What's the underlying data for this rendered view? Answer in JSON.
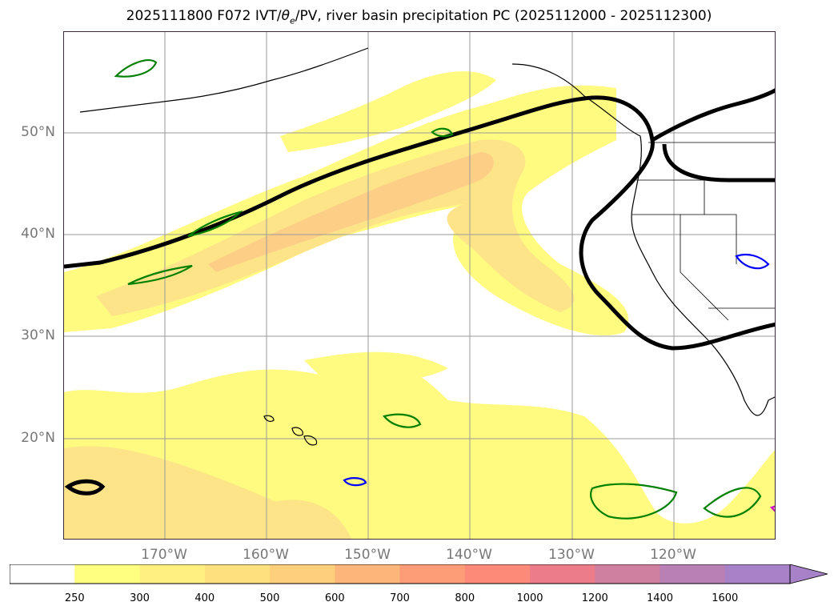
{
  "title": {
    "main": "2025111800 F072 IVT/",
    "theta": "θ",
    "theta_sub": "e",
    "rest": "/PV, river basin precipitation PC (2025112000 - 2025112300)"
  },
  "map": {
    "projection": "PlateCarree",
    "lat_labels": [
      "50°N",
      "40°N",
      "30°N",
      "20°N"
    ],
    "lon_labels": [
      "170°W",
      "160°W",
      "150°W",
      "140°W",
      "130°W",
      "120°W"
    ],
    "fill_colors": [
      "#ffffff",
      "#fffb80",
      "#fef389",
      "#fde489",
      "#fdcf86",
      "#fbb380",
      "#fa9a7f",
      "#f78a80",
      "#e07f90",
      "#c47fa8",
      "#b282c0",
      "#a882cc"
    ],
    "contour_colors": {
      "pv": "#000000",
      "precip_high": "#008000",
      "precip_low": "#0000ff",
      "precip_extreme": "#cc00cc"
    }
  },
  "colorbar": {
    "ticks": [
      "250",
      "300",
      "400",
      "500",
      "600",
      "700",
      "800",
      "1000",
      "1200",
      "1400",
      "1600"
    ],
    "colors": [
      "#ffffff",
      "#ffff80",
      "#fff080",
      "#fee17e",
      "#fed07c",
      "#fdb67a",
      "#fd9d78",
      "#fc8a78",
      "#ec7c8a",
      "#cf7fa0",
      "#b980b6",
      "#a882c8"
    ],
    "extend": "max"
  }
}
